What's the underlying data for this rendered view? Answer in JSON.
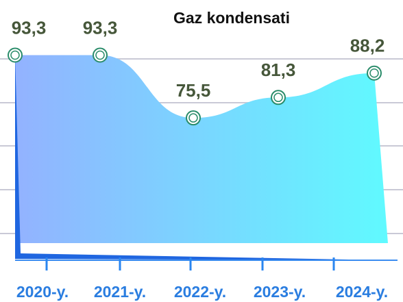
{
  "chart_data": {
    "type": "area",
    "title": "Gaz kondensati",
    "categories": [
      "2020-y.",
      "2021-y.",
      "2022-y.",
      "2023-y.",
      "2024-y."
    ],
    "values": [
      93.3,
      93.3,
      75.5,
      81.3,
      88.2
    ],
    "value_labels": [
      "93,3",
      "93,3",
      "75,5",
      "81,3",
      "88,2"
    ],
    "ylim": [
      40,
      100
    ],
    "grid": true
  }
}
